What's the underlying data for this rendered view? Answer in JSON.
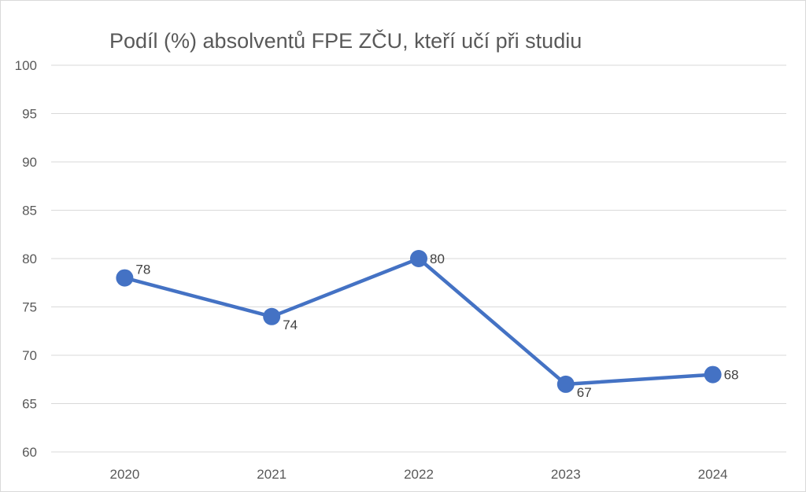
{
  "chart_data": {
    "type": "line",
    "title": "Podíl (%) absolventů FPE ZČU, kteří učí při studiu",
    "categories": [
      "2020",
      "2021",
      "2022",
      "2023",
      "2024"
    ],
    "series": [
      {
        "values": [
          78,
          74,
          80,
          67,
          68
        ]
      }
    ],
    "data_labels": [
      "78",
      "74",
      "80",
      "67",
      "68"
    ],
    "y_ticks": [
      "60",
      "65",
      "70",
      "75",
      "80",
      "85",
      "90",
      "95",
      "100"
    ],
    "ylim": [
      60,
      100
    ],
    "grid": true,
    "legend": "none",
    "colors": {
      "line": "#4472c4",
      "grid": "#d9d9d9",
      "text": "#595959"
    }
  }
}
